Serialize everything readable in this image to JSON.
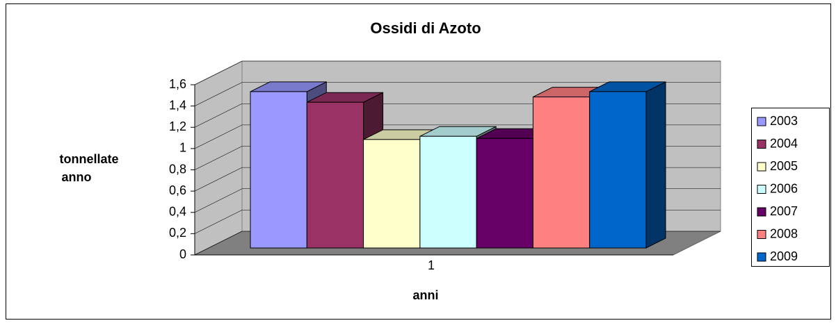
{
  "chart_data": {
    "type": "bar3d",
    "title": "Ossidi di Azoto",
    "x_label": "anni",
    "y_label": [
      "tonnellate",
      "anno"
    ],
    "categories": [
      "1"
    ],
    "series": [
      {
        "name": "2003",
        "color": "#9999ff",
        "values": [
          1.47
        ]
      },
      {
        "name": "2004",
        "color": "#993366",
        "values": [
          1.37
        ]
      },
      {
        "name": "2005",
        "color": "#ffffcc",
        "values": [
          1.02
        ]
      },
      {
        "name": "2006",
        "color": "#ccffff",
        "values": [
          1.05
        ]
      },
      {
        "name": "2007",
        "color": "#660066",
        "values": [
          1.03
        ]
      },
      {
        "name": "2008",
        "color": "#ff8080",
        "values": [
          1.42
        ]
      },
      {
        "name": "2009",
        "color": "#0066cc",
        "values": [
          1.47
        ]
      }
    ],
    "ylim": [
      0,
      1.6
    ],
    "yticks": [
      0,
      {
        "value": 0.2,
        "label": "0,2"
      },
      {
        "value": 0.4,
        "label": "0,4"
      },
      {
        "value": 0.6,
        "label": "0,6"
      },
      {
        "value": 0.8,
        "label": "0,8"
      },
      1,
      {
        "value": 1.2,
        "label": "1,2"
      },
      {
        "value": 1.4,
        "label": "1,4"
      },
      {
        "value": 1.6,
        "label": "1,6"
      }
    ],
    "grid": true,
    "legend": "right"
  }
}
